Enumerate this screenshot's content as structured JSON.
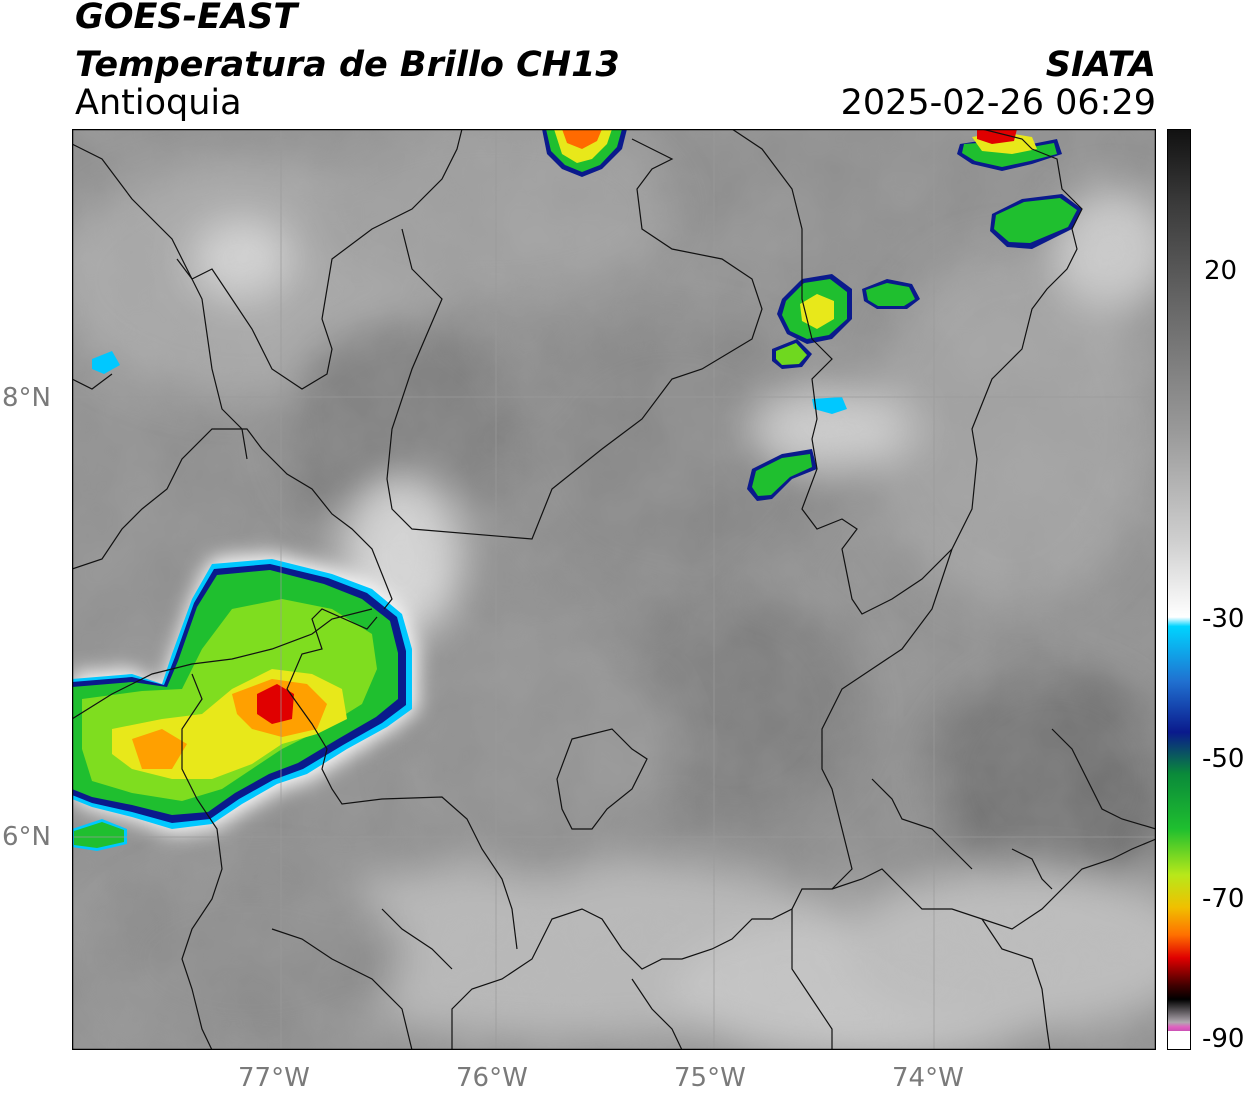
{
  "header": {
    "satellite": "GOES-EAST",
    "product": "Temperatura de Brillo CH13",
    "region": "Antioquia",
    "organization": "SIATA",
    "datetime": "2025-02-26 06:29"
  },
  "map": {
    "lat_labels": [
      "8°N",
      "6°N"
    ],
    "lon_labels": [
      "77°W",
      "76°W",
      "75°W",
      "74°W"
    ]
  },
  "colorbar": {
    "tick_labels": [
      "20",
      "-30",
      "-50",
      "-70",
      "-90"
    ],
    "colors": {
      "gray_dark": "#1a1a1a",
      "gray_mid": "#8a8a8a",
      "white": "#ffffff",
      "cyan": "#00d4ff",
      "blue": "#0a1a8c",
      "green": "#1fbf2f",
      "yellow": "#f0f000",
      "orange": "#ff9a00",
      "red": "#e00000",
      "black": "#000000",
      "pink": "#e060c0",
      "purple": "#8a1a8a"
    }
  }
}
